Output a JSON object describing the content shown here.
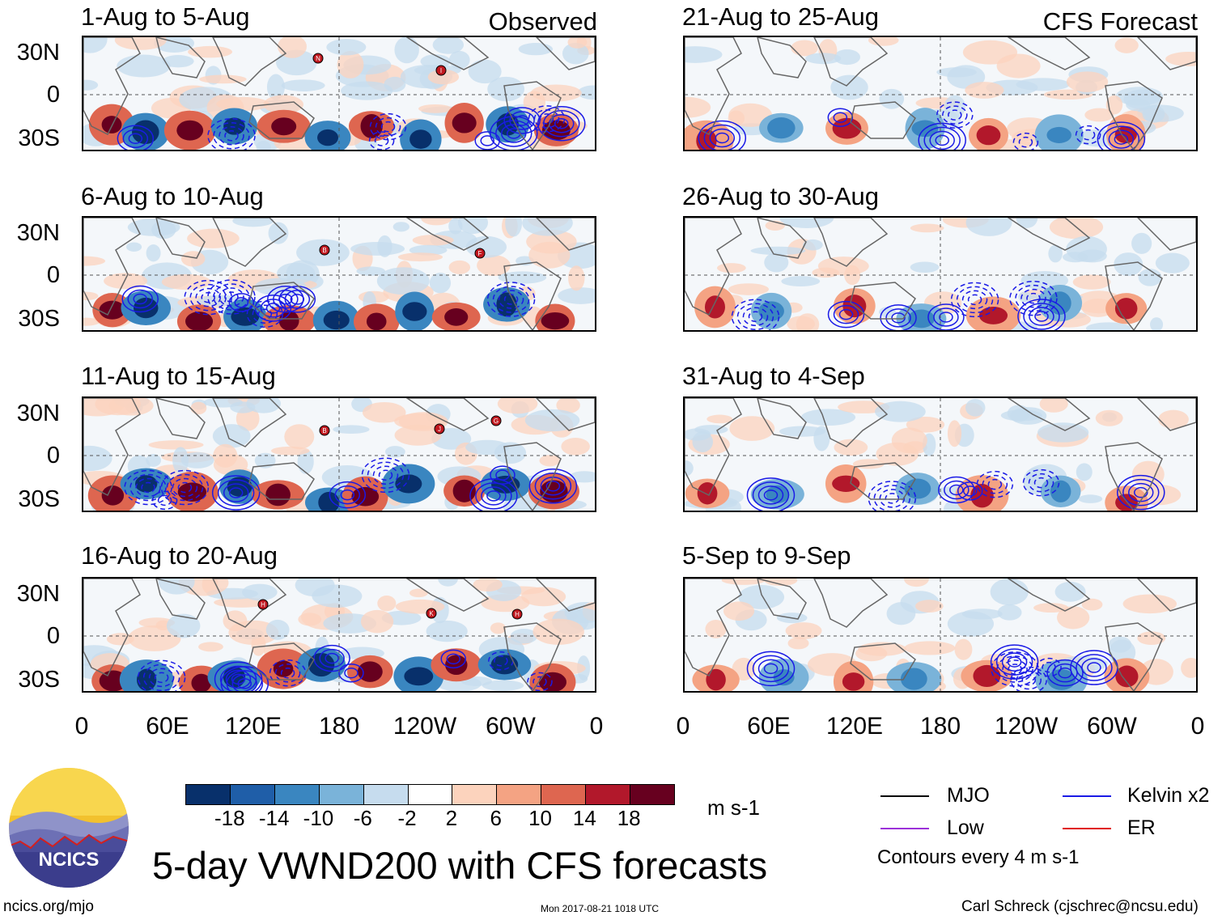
{
  "observed_label": "Observed",
  "forecast_label": "CFS Forecast",
  "panels_left": [
    {
      "title": "1-Aug to 5-Aug"
    },
    {
      "title": "6-Aug to 10-Aug"
    },
    {
      "title": "11-Aug to 15-Aug"
    },
    {
      "title": "16-Aug to 20-Aug"
    }
  ],
  "panels_right": [
    {
      "title": "21-Aug to 25-Aug"
    },
    {
      "title": "26-Aug to 30-Aug"
    },
    {
      "title": "31-Aug to 4-Sep"
    },
    {
      "title": "5-Sep to 9-Sep"
    }
  ],
  "y_axis": [
    "30N",
    "0",
    "30S"
  ],
  "x_axis": [
    "0",
    "60E",
    "120E",
    "180",
    "120W",
    "60W",
    "0"
  ],
  "colorbar": {
    "labels": [
      "-18",
      "-14",
      "-10",
      "-6",
      "-2",
      "2",
      "6",
      "10",
      "14",
      "18"
    ],
    "colors": [
      "#08306b",
      "#1f5ea8",
      "#3a86c0",
      "#7ab3d9",
      "#c6dcee",
      "#ffffff",
      "#fcd3bd",
      "#f4a383",
      "#de6650",
      "#b2182b",
      "#67001f"
    ],
    "units": "m s-1"
  },
  "legend": {
    "mjo": "MJO",
    "kelvin": "Kelvin x2",
    "low": "Low",
    "er": "ER",
    "contours": "Contours every 4 m s-1",
    "colors": {
      "mjo": "#000000",
      "kelvin": "#1a1ae6",
      "low": "#9b30d9",
      "er": "#e01010"
    }
  },
  "main_title": "5-day VWND200 with CFS forecasts",
  "logo_text": "NCICS",
  "footer": {
    "url": "ncics.org/mjo",
    "timestamp": "Mon 2017-08-21 1018 UTC",
    "credit": "Carl Schreck (cjschrec@ncsu.edu)"
  },
  "storms": [
    {
      "panel": 0,
      "label": "N"
    },
    {
      "panel": 0,
      "label": "I"
    },
    {
      "panel": 1,
      "label": "B"
    },
    {
      "panel": 1,
      "label": "F"
    },
    {
      "panel": 2,
      "label": "B"
    },
    {
      "panel": 2,
      "label": "J"
    },
    {
      "panel": 2,
      "label": "G"
    },
    {
      "panel": 3,
      "label": "H"
    },
    {
      "panel": 3,
      "label": "K"
    },
    {
      "panel": 3,
      "label": "H"
    }
  ]
}
